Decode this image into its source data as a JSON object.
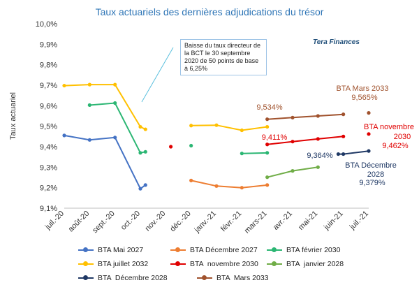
{
  "chart_data": {
    "type": "line",
    "title": "Taux actuariels des dernières adjudications du trésor",
    "brand": "Tera Finances",
    "ylabel": "Taux actuariel",
    "ylim": [
      9.1,
      10.0
    ],
    "yticks": [
      "9,1%",
      "9,2%",
      "9,3%",
      "9,4%",
      "9,5%",
      "9,6%",
      "9,7%",
      "9,8%",
      "9,9%",
      "10,0%"
    ],
    "categories": [
      "juil.-20",
      "août-20",
      "sept.-20",
      "oct.-20",
      "nov.-20",
      "déc.-20",
      "janv.-21",
      "févr.-21",
      "mars-21",
      "avr.-21",
      "mai-21",
      "juin-21",
      "juil.-21"
    ],
    "grid": false,
    "legend_position": "bottom",
    "annotation": "Baisse du taux directeur de la BCT le 30 septembre 2020  de 50 points de base à 6,25%",
    "series": [
      {
        "name": "BTA Mai 2027",
        "color": "#4472c4",
        "segments": [
          [
            [
              0,
              9.455
            ],
            [
              1,
              9.433
            ],
            [
              2,
              9.445
            ],
            [
              3.0,
              9.195
            ],
            [
              3.2,
              9.213
            ]
          ]
        ]
      },
      {
        "name": "BTA Décembre 2027",
        "color": "#ed7d31",
        "segments": [
          [
            [
              5,
              9.235
            ],
            [
              6,
              9.208
            ],
            [
              7,
              9.2
            ],
            [
              8,
              9.213
            ]
          ]
        ]
      },
      {
        "name": "BTA février 2030",
        "color": "#2bb673",
        "segments": [
          [
            [
              1,
              9.603
            ],
            [
              2,
              9.613
            ],
            [
              3.0,
              9.37
            ],
            [
              3.2,
              9.375
            ]
          ],
          [
            [
              5,
              9.405
            ]
          ],
          [
            [
              7,
              9.367
            ],
            [
              8,
              9.37
            ]
          ]
        ]
      },
      {
        "name": "BTA juillet 2032",
        "color": "#ffc000",
        "segments": [
          [
            [
              0,
              9.698
            ],
            [
              1,
              9.703
            ],
            [
              2,
              9.703
            ],
            [
              3.0,
              9.497
            ],
            [
              3.2,
              9.485
            ]
          ],
          [
            [
              5,
              9.503
            ],
            [
              6,
              9.505
            ],
            [
              7,
              9.48
            ],
            [
              8,
              9.497
            ]
          ]
        ]
      },
      {
        "name": "BTA  novembre 2030",
        "color": "#e00000",
        "segments": [
          [
            [
              4.2,
              9.4
            ]
          ],
          [
            [
              8,
              9.411
            ],
            [
              9,
              9.425
            ],
            [
              10,
              9.438
            ],
            [
              11,
              9.45
            ]
          ],
          [
            [
              12,
              9.462
            ]
          ]
        ]
      },
      {
        "name": "BTA  janvier 2028",
        "color": "#70ad47",
        "segments": [
          [
            [
              8,
              9.251
            ],
            [
              9,
              9.282
            ],
            [
              10,
              9.3
            ]
          ]
        ]
      },
      {
        "name": "BTA  Décembre 2028",
        "color": "#1f3864",
        "segments": [
          [
            [
              10.8,
              9.364
            ],
            [
              11,
              9.364
            ],
            [
              12,
              9.379
            ]
          ]
        ]
      },
      {
        "name": "BTA  Mars 2033",
        "color": "#a0522d",
        "segments": [
          [
            [
              8,
              9.534
            ],
            [
              9,
              9.542
            ],
            [
              10,
              9.55
            ],
            [
              11,
              9.558
            ]
          ],
          [
            [
              12,
              9.565
            ]
          ]
        ]
      }
    ],
    "data_labels": [
      {
        "text": "9,534%",
        "series": 7
      },
      {
        "text": "9,411%",
        "series": 4
      },
      {
        "text": "9,364%",
        "series": 6
      },
      {
        "text": "BTA  Mars 2033",
        "series": 7
      },
      {
        "text": "9,565%",
        "series": 7
      },
      {
        "text": "BTA  novembre",
        "series": 4
      },
      {
        "text": "2030",
        "series": 4
      },
      {
        "text": "9,462%",
        "series": 4
      },
      {
        "text": "BTA  Décembre",
        "series": 6
      },
      {
        "text": "2028",
        "series": 6
      },
      {
        "text": "9,379%",
        "series": 6
      }
    ]
  }
}
